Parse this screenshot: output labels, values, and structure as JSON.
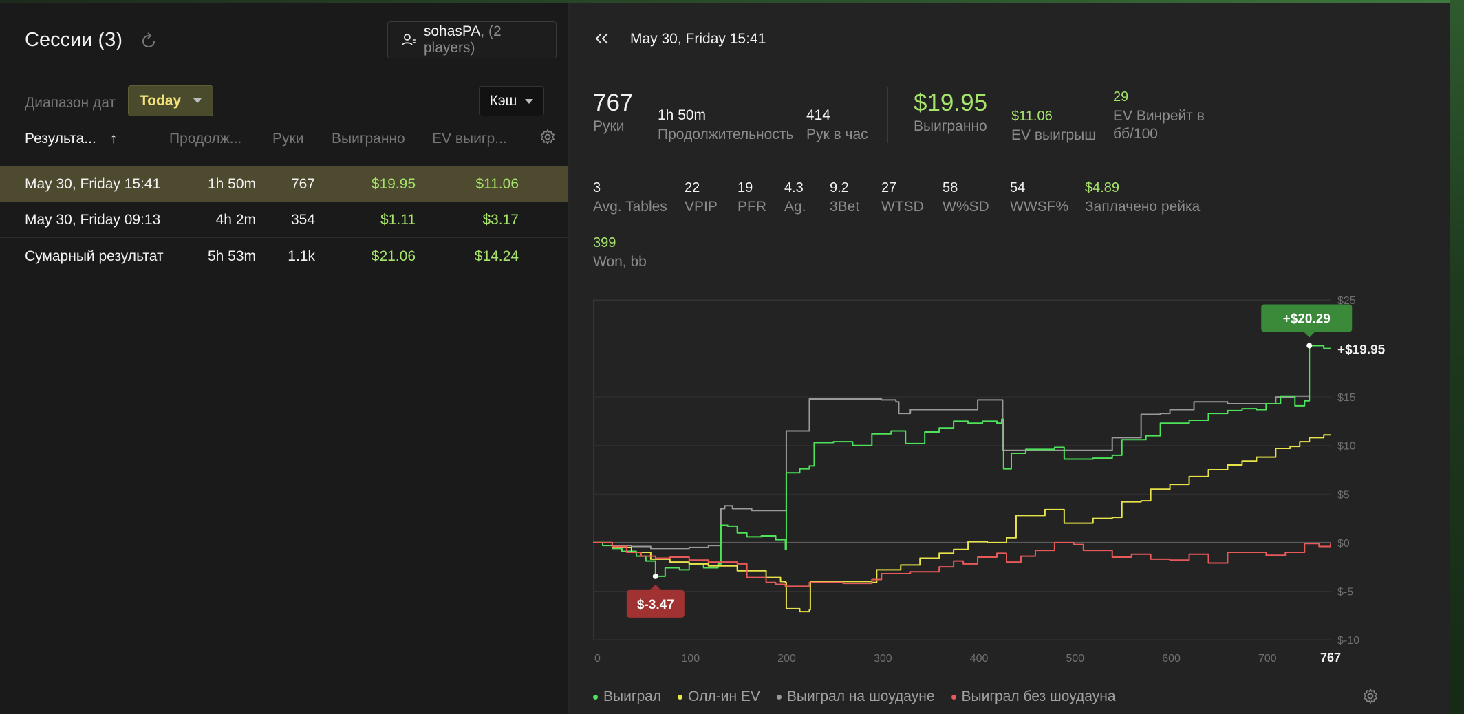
{
  "left": {
    "title": "Сессии (3)",
    "player": {
      "name": "sohasPA",
      "count": ", (2 players)"
    },
    "date_range_label": "Диапазон дат",
    "date_range_value": "Today",
    "game_type": "Кэш",
    "columns": {
      "result": "Результа...",
      "sort_arrow": "↑",
      "duration": "Продолж...",
      "hands": "Руки",
      "won": "Выигранно",
      "ev": "EV выигр..."
    },
    "rows": [
      {
        "name": "May 30, Friday 15:41",
        "duration": "1h 50m",
        "hands": "767",
        "won": "$19.95",
        "ev": "$11.06"
      },
      {
        "name": "May 30, Friday 09:13",
        "duration": "4h 2m",
        "hands": "354",
        "won": "$1.11",
        "ev": "$3.17"
      },
      {
        "name": "Сумарный результат",
        "duration": "5h 53m",
        "hands": "1.1k",
        "won": "$21.06",
        "ev": "$14.24"
      }
    ]
  },
  "right": {
    "title": "May 30, Friday 15:41",
    "stats_main": {
      "hands": {
        "value": "767",
        "label": "Руки"
      },
      "duration": {
        "value": "1h 50m",
        "label": "Продолжительность"
      },
      "hands_per_hour": {
        "value": "414",
        "label": "Рук в час"
      },
      "won": {
        "value": "$19.95",
        "label": "Выигранно"
      },
      "ev_won": {
        "value": "$11.06",
        "label": "EV выигрыш"
      },
      "ev_winrate": {
        "value": "29",
        "label_1": "EV Винрейт в",
        "label_2": "бб/100"
      }
    },
    "stats_row2": [
      {
        "value": "3",
        "label": "Avg. Tables"
      },
      {
        "value": "22",
        "label": "VPIP"
      },
      {
        "value": "19",
        "label": "PFR"
      },
      {
        "value": "4.3",
        "label": "Ag."
      },
      {
        "value": "9.2",
        "label": "3Bet"
      },
      {
        "value": "27",
        "label": "WTSD"
      },
      {
        "value": "58",
        "label": "W%SD"
      },
      {
        "value": "54",
        "label": "WWSF%"
      },
      {
        "value": "$4.89",
        "label": "Заплачено рейка"
      }
    ],
    "stats_row3": {
      "value": "399",
      "label": "Won, bb"
    },
    "legend": {
      "won": "Выиграл",
      "allin_ev": "Олл-ин EV",
      "won_sd": "Выиграл на шоудауне",
      "won_nsd": "Выиграл без шоудауна"
    },
    "colors": {
      "won": "#4ee35a",
      "allin_ev": "#e8e34a",
      "won_sd": "#9a9a9a",
      "won_nsd": "#e85a5a",
      "positive": "#a6e36b",
      "max_badge": "#3a8a3a",
      "min_badge": "#a03232"
    }
  },
  "chart_data": {
    "type": "line",
    "x_ticks": [
      0,
      100,
      200,
      300,
      400,
      500,
      600,
      700
    ],
    "x_end_label": "767",
    "xlim": [
      0,
      767
    ],
    "y_ticks": [
      {
        "value": 25,
        "label": "$25"
      },
      {
        "value": 15,
        "label": "$15"
      },
      {
        "value": 10,
        "label": "$10"
      },
      {
        "value": 5,
        "label": "$5"
      },
      {
        "value": 0,
        "label": "$0"
      },
      {
        "value": -5,
        "label": "$-5"
      },
      {
        "value": -10,
        "label": "$-10"
      }
    ],
    "ylim": [
      -10,
      25
    ],
    "end_label": "+$19.95",
    "max_annotation": {
      "x": 745,
      "y": 20.29,
      "label": "+$20.29"
    },
    "min_annotation": {
      "x": 65,
      "y": -3.47,
      "label": "$-3.47"
    },
    "series": [
      {
        "name": "Выиграл на шоудауне",
        "color_key": "won_sd",
        "points": [
          [
            0,
            0
          ],
          [
            20,
            -0.3
          ],
          [
            40,
            -0.4
          ],
          [
            60,
            -0.6
          ],
          [
            80,
            -0.6
          ],
          [
            100,
            -0.5
          ],
          [
            120,
            -0.3
          ],
          [
            130,
            -0.3
          ],
          [
            133,
            3.5
          ],
          [
            137,
            3.8
          ],
          [
            145,
            3.5
          ],
          [
            165,
            3.3
          ],
          [
            200,
            3.3
          ],
          [
            201,
            11.5
          ],
          [
            222,
            11.5
          ],
          [
            225,
            14.8
          ],
          [
            260,
            14.8
          ],
          [
            300,
            14.7
          ],
          [
            315,
            14.5
          ],
          [
            318,
            13.3
          ],
          [
            330,
            13.7
          ],
          [
            390,
            13.7
          ],
          [
            400,
            14.7
          ],
          [
            425,
            14.7
          ],
          [
            426,
            9.5
          ],
          [
            470,
            9.5
          ],
          [
            530,
            9.5
          ],
          [
            540,
            10.8
          ],
          [
            565,
            10.8
          ],
          [
            570,
            13.2
          ],
          [
            590,
            13.3
          ],
          [
            600,
            13.7
          ],
          [
            620,
            13.7
          ],
          [
            625,
            14.5
          ],
          [
            650,
            14.5
          ],
          [
            660,
            14.3
          ],
          [
            700,
            14.3
          ],
          [
            710,
            15.0
          ],
          [
            730,
            15.1
          ],
          [
            745,
            15.1
          ]
        ]
      },
      {
        "name": "Выиграл",
        "color_key": "won",
        "points": [
          [
            0,
            0
          ],
          [
            10,
            -0.3
          ],
          [
            20,
            -0.6
          ],
          [
            30,
            -0.9
          ],
          [
            45,
            -1.4
          ],
          [
            55,
            -1.9
          ],
          [
            65,
            -3.47
          ],
          [
            75,
            -2.6
          ],
          [
            90,
            -2.8
          ],
          [
            100,
            -2.2
          ],
          [
            115,
            -2.6
          ],
          [
            130,
            -2.2
          ],
          [
            133,
            1.8
          ],
          [
            140,
            1.7
          ],
          [
            150,
            1.0
          ],
          [
            160,
            0.6
          ],
          [
            175,
            0.7
          ],
          [
            190,
            0.3
          ],
          [
            200,
            -0.7
          ],
          [
            201,
            7.2
          ],
          [
            215,
            7.6
          ],
          [
            225,
            7.9
          ],
          [
            230,
            10.3
          ],
          [
            250,
            10.4
          ],
          [
            270,
            10.0
          ],
          [
            290,
            11.2
          ],
          [
            310,
            11.5
          ],
          [
            325,
            10.2
          ],
          [
            345,
            11.4
          ],
          [
            360,
            11.8
          ],
          [
            375,
            12.5
          ],
          [
            390,
            12.3
          ],
          [
            405,
            12.5
          ],
          [
            420,
            12.3
          ],
          [
            425,
            12.7
          ],
          [
            427,
            7.6
          ],
          [
            435,
            9.2
          ],
          [
            450,
            9.6
          ],
          [
            480,
            9.8
          ],
          [
            490,
            8.6
          ],
          [
            520,
            8.7
          ],
          [
            540,
            9.0
          ],
          [
            550,
            10.6
          ],
          [
            575,
            11.0
          ],
          [
            590,
            12.3
          ],
          [
            620,
            12.6
          ],
          [
            640,
            13.3
          ],
          [
            660,
            13.6
          ],
          [
            675,
            13.8
          ],
          [
            690,
            13.7
          ],
          [
            700,
            14.3
          ],
          [
            715,
            15.1
          ],
          [
            730,
            14.1
          ],
          [
            740,
            14.6
          ],
          [
            745,
            20.29
          ],
          [
            760,
            20.0
          ],
          [
            767,
            19.95
          ]
        ]
      },
      {
        "name": "Олл-ин EV",
        "color_key": "allin_ev",
        "points": [
          [
            0,
            0
          ],
          [
            20,
            -0.5
          ],
          [
            40,
            -1.0
          ],
          [
            60,
            -1.7
          ],
          [
            80,
            -2.0
          ],
          [
            100,
            -2.2
          ],
          [
            120,
            -2.4
          ],
          [
            150,
            -2.9
          ],
          [
            180,
            -3.6
          ],
          [
            195,
            -4.0
          ],
          [
            200,
            -4.1
          ],
          [
            201,
            -6.8
          ],
          [
            215,
            -7.1
          ],
          [
            225,
            -6.9
          ],
          [
            226,
            -4.0
          ],
          [
            260,
            -4.0
          ],
          [
            290,
            -4.1
          ],
          [
            295,
            -2.8
          ],
          [
            320,
            -2.3
          ],
          [
            340,
            -1.6
          ],
          [
            360,
            -1.1
          ],
          [
            375,
            -0.7
          ],
          [
            390,
            0.1
          ],
          [
            410,
            0.0
          ],
          [
            430,
            0.5
          ],
          [
            440,
            2.8
          ],
          [
            470,
            3.4
          ],
          [
            490,
            2.0
          ],
          [
            520,
            2.5
          ],
          [
            540,
            2.6
          ],
          [
            550,
            4.2
          ],
          [
            570,
            4.3
          ],
          [
            580,
            5.5
          ],
          [
            600,
            6.0
          ],
          [
            620,
            6.8
          ],
          [
            640,
            7.5
          ],
          [
            660,
            8.0
          ],
          [
            675,
            8.4
          ],
          [
            690,
            8.8
          ],
          [
            710,
            9.7
          ],
          [
            725,
            9.9
          ],
          [
            735,
            10.4
          ],
          [
            745,
            10.8
          ],
          [
            760,
            11.1
          ],
          [
            767,
            11.06
          ]
        ]
      },
      {
        "name": "Выиграл без шоудауна",
        "color_key": "won_nsd",
        "points": [
          [
            0,
            0
          ],
          [
            20,
            -0.4
          ],
          [
            35,
            -1.0
          ],
          [
            50,
            -1.4
          ],
          [
            65,
            -1.6
          ],
          [
            80,
            -1.5
          ],
          [
            100,
            -1.8
          ],
          [
            120,
            -2.0
          ],
          [
            150,
            -2.2
          ],
          [
            160,
            -3.6
          ],
          [
            180,
            -4.1
          ],
          [
            190,
            -4.3
          ],
          [
            200,
            -4.5
          ],
          [
            225,
            -4.1
          ],
          [
            260,
            -4.2
          ],
          [
            290,
            -3.8
          ],
          [
            300,
            -3.2
          ],
          [
            330,
            -3.0
          ],
          [
            360,
            -2.5
          ],
          [
            375,
            -1.9
          ],
          [
            385,
            -2.2
          ],
          [
            400,
            -1.5
          ],
          [
            420,
            -1.1
          ],
          [
            430,
            -2.0
          ],
          [
            445,
            -1.4
          ],
          [
            460,
            -0.8
          ],
          [
            480,
            0.0
          ],
          [
            500,
            -0.2
          ],
          [
            510,
            -0.8
          ],
          [
            540,
            -1.5
          ],
          [
            560,
            -1.2
          ],
          [
            580,
            -1.7
          ],
          [
            600,
            -1.8
          ],
          [
            620,
            -1.2
          ],
          [
            640,
            -2.1
          ],
          [
            660,
            -1.0
          ],
          [
            680,
            -1.0
          ],
          [
            700,
            -1.3
          ],
          [
            720,
            -1.0
          ],
          [
            740,
            -0.1
          ],
          [
            755,
            -0.4
          ],
          [
            767,
            -0.1
          ]
        ]
      }
    ]
  }
}
